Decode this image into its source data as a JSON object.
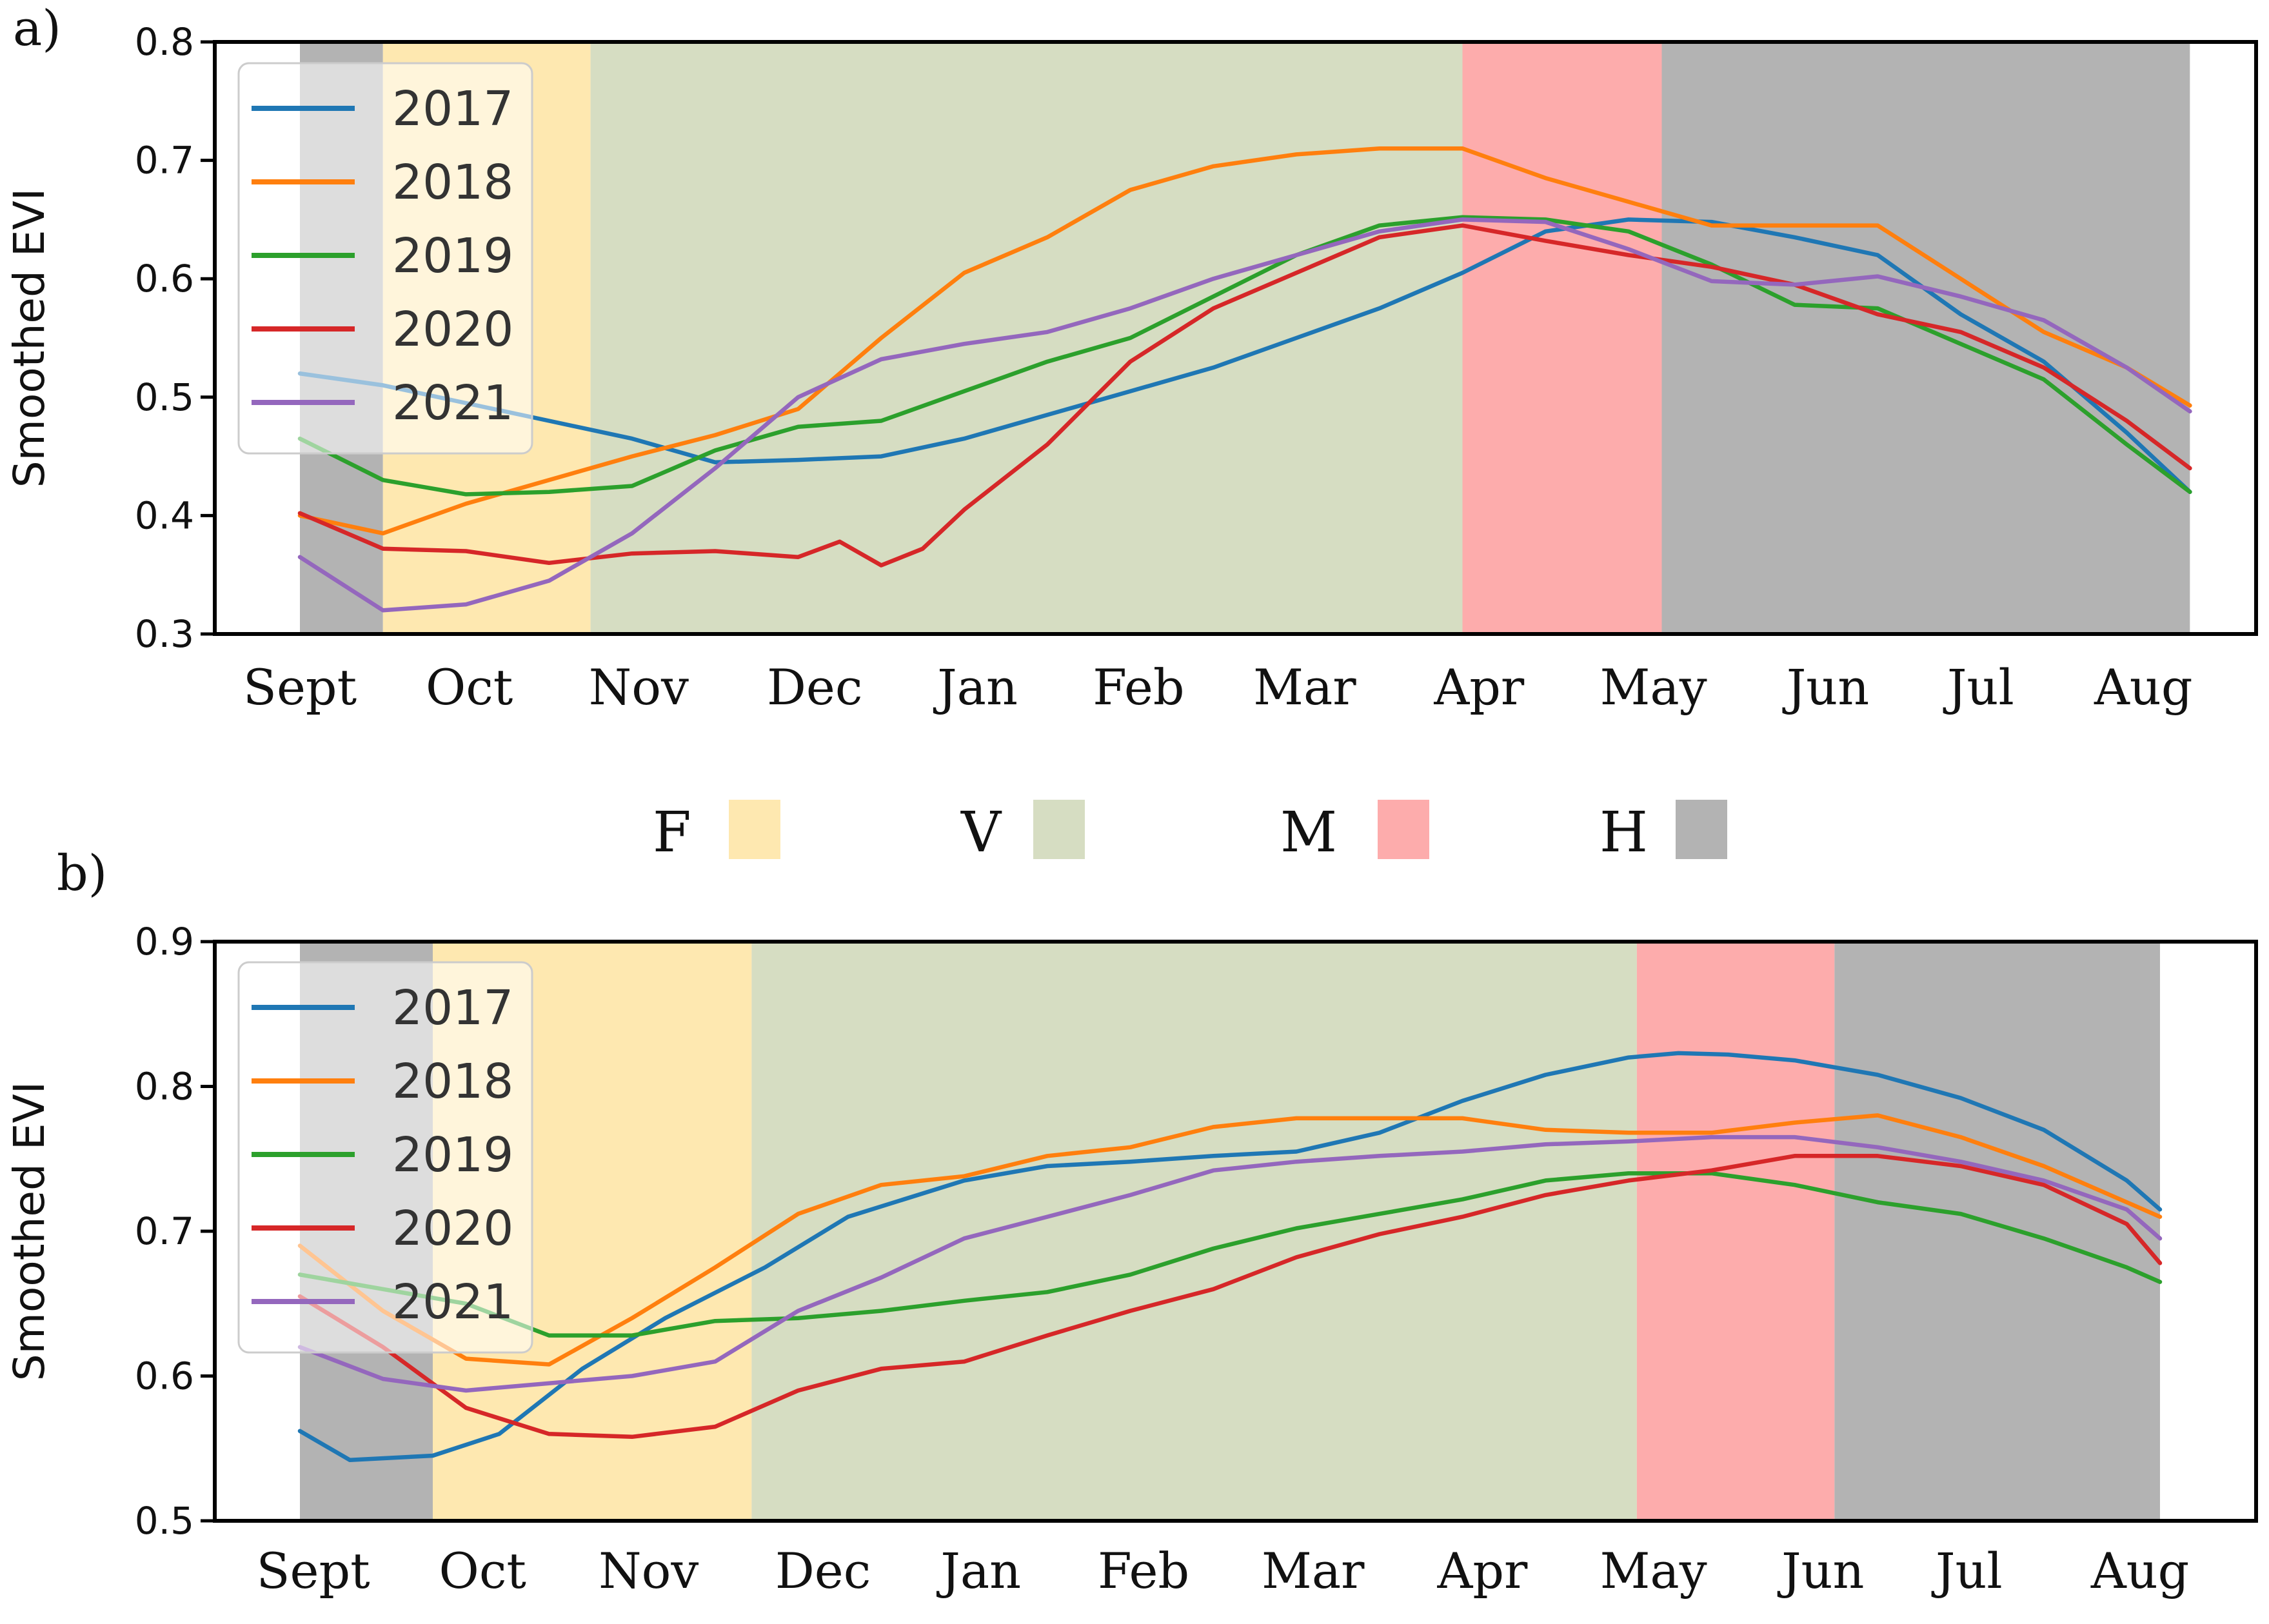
{
  "chart_data": [
    {
      "type": "line",
      "panel_label": "a)",
      "title": "",
      "xlabel": "",
      "ylabel": "Smoothed EVI",
      "ylim": [
        0.3,
        0.8
      ],
      "yticks": [
        "0.3",
        "0.4",
        "0.5",
        "0.6",
        "0.7",
        "0.8"
      ],
      "xlim": [
        0,
        12
      ],
      "month_labels": [
        "Sept",
        "Oct",
        "Nov",
        "Dec",
        "Jan",
        "Feb",
        "Mar",
        "Apr",
        "May",
        "Jun",
        "Jul",
        "Aug"
      ],
      "month_positions": [
        0,
        1.02,
        2.04,
        3.1,
        4.08,
        5.05,
        6.05,
        7.1,
        8.15,
        9.2,
        10.12,
        11.1
      ],
      "grid": false,
      "legend_position": "top-left",
      "phases": [
        {
          "key": "H",
          "start": 0,
          "end": 0.5
        },
        {
          "key": "F",
          "start": 0.5,
          "end": 1.75
        },
        {
          "key": "V",
          "start": 1.75,
          "end": 7.0
        },
        {
          "key": "M",
          "start": 7.0,
          "end": 8.2
        },
        {
          "key": "H",
          "start": 8.2,
          "end": 11.38
        }
      ],
      "series": [
        {
          "name": "2017",
          "color": "#1f77b4",
          "x": [
            0,
            0.5,
            1,
            1.5,
            2,
            2.5,
            3,
            3.5,
            4,
            4.5,
            5,
            5.5,
            6,
            6.5,
            7,
            7.5,
            8,
            8.5,
            9,
            9.5,
            10,
            10.5,
            11,
            11.38
          ],
          "values": [
            0.52,
            0.51,
            0.495,
            0.48,
            0.465,
            0.445,
            0.447,
            0.45,
            0.465,
            0.485,
            0.505,
            0.525,
            0.55,
            0.575,
            0.605,
            0.64,
            0.65,
            0.648,
            0.635,
            0.62,
            0.57,
            0.53,
            0.47,
            0.42
          ]
        },
        {
          "name": "2018",
          "color": "#ff7f0e",
          "x": [
            0,
            0.5,
            1,
            1.5,
            2,
            2.5,
            3,
            3.5,
            4,
            4.5,
            5,
            5.5,
            6,
            6.5,
            7,
            7.5,
            8,
            8.5,
            9,
            9.5,
            10,
            10.5,
            11,
            11.38
          ],
          "values": [
            0.4,
            0.385,
            0.41,
            0.43,
            0.45,
            0.468,
            0.49,
            0.55,
            0.605,
            0.635,
            0.675,
            0.695,
            0.705,
            0.71,
            0.71,
            0.685,
            0.665,
            0.645,
            0.645,
            0.645,
            0.6,
            0.555,
            0.525,
            0.493
          ]
        },
        {
          "name": "2019",
          "color": "#2ca02c",
          "x": [
            0,
            0.5,
            1,
            1.5,
            2,
            2.5,
            3,
            3.5,
            4,
            4.5,
            5,
            5.5,
            6,
            6.5,
            7,
            7.5,
            8,
            8.5,
            9,
            9.5,
            10,
            10.5,
            11,
            11.38
          ],
          "values": [
            0.465,
            0.43,
            0.418,
            0.42,
            0.425,
            0.455,
            0.475,
            0.48,
            0.505,
            0.53,
            0.55,
            0.585,
            0.62,
            0.645,
            0.652,
            0.65,
            0.64,
            0.612,
            0.578,
            0.575,
            0.545,
            0.515,
            0.46,
            0.42
          ]
        },
        {
          "name": "2020",
          "color": "#d62728",
          "x": [
            0,
            0.5,
            1,
            1.5,
            2,
            2.5,
            3,
            3.25,
            3.5,
            3.75,
            4,
            4.5,
            5,
            5.5,
            6,
            6.5,
            7,
            7.5,
            8,
            8.5,
            9,
            9.5,
            10,
            10.5,
            11,
            11.38
          ],
          "values": [
            0.402,
            0.372,
            0.37,
            0.36,
            0.368,
            0.37,
            0.365,
            0.378,
            0.358,
            0.372,
            0.405,
            0.46,
            0.53,
            0.575,
            0.605,
            0.635,
            0.645,
            0.632,
            0.62,
            0.61,
            0.595,
            0.57,
            0.555,
            0.525,
            0.48,
            0.44
          ]
        },
        {
          "name": "2021",
          "color": "#9467bd",
          "x": [
            0,
            0.5,
            1,
            1.5,
            2,
            2.5,
            3,
            3.5,
            4,
            4.5,
            5,
            5.5,
            6,
            6.5,
            7,
            7.5,
            8,
            8.5,
            9,
            9.5,
            10,
            10.5,
            11,
            11.38
          ],
          "values": [
            0.365,
            0.32,
            0.325,
            0.345,
            0.385,
            0.44,
            0.5,
            0.532,
            0.545,
            0.555,
            0.575,
            0.6,
            0.62,
            0.64,
            0.65,
            0.648,
            0.625,
            0.598,
            0.595,
            0.602,
            0.585,
            0.565,
            0.525,
            0.488
          ]
        }
      ]
    },
    {
      "type": "line",
      "panel_label": "b)",
      "title": "",
      "xlabel": "",
      "ylabel": "Smoothed EVI",
      "ylim": [
        0.5,
        0.9
      ],
      "yticks": [
        "0.5",
        "0.6",
        "0.7",
        "0.8",
        "0.9"
      ],
      "xlim": [
        0,
        12
      ],
      "month_labels": [
        "Sept",
        "Oct",
        "Nov",
        "Dec",
        "Jan",
        "Feb",
        "Mar",
        "Apr",
        "May",
        "Jun",
        "Jul",
        "Aug"
      ],
      "month_positions": [
        0.08,
        1.1,
        2.1,
        3.15,
        4.1,
        5.08,
        6.1,
        7.12,
        8.15,
        9.17,
        10.05,
        11.08
      ],
      "grid": false,
      "legend_position": "top-left",
      "phases": [
        {
          "key": "H",
          "start": 0,
          "end": 0.8
        },
        {
          "key": "F",
          "start": 0.8,
          "end": 2.72
        },
        {
          "key": "V",
          "start": 2.72,
          "end": 8.05
        },
        {
          "key": "M",
          "start": 8.05,
          "end": 9.24
        },
        {
          "key": "H",
          "start": 9.24,
          "end": 11.2
        }
      ],
      "series": [
        {
          "name": "2017",
          "color": "#1f77b4",
          "x": [
            0,
            0.3,
            0.8,
            1.2,
            1.7,
            2.2,
            2.8,
            3.3,
            4,
            4.5,
            5,
            5.5,
            6,
            6.5,
            7,
            7.5,
            8,
            8.3,
            8.6,
            9,
            9.5,
            10,
            10.5,
            11,
            11.2
          ],
          "values": [
            0.562,
            0.542,
            0.545,
            0.56,
            0.605,
            0.64,
            0.675,
            0.71,
            0.735,
            0.745,
            0.748,
            0.752,
            0.755,
            0.768,
            0.79,
            0.808,
            0.82,
            0.823,
            0.822,
            0.818,
            0.808,
            0.792,
            0.77,
            0.735,
            0.715
          ]
        },
        {
          "name": "2018",
          "color": "#ff7f0e",
          "x": [
            0,
            0.5,
            1,
            1.5,
            2,
            2.5,
            3,
            3.5,
            4,
            4.5,
            5,
            5.5,
            6,
            6.5,
            7,
            7.5,
            8,
            8.5,
            9,
            9.5,
            10,
            10.5,
            11,
            11.2
          ],
          "values": [
            0.69,
            0.645,
            0.612,
            0.608,
            0.64,
            0.675,
            0.712,
            0.732,
            0.738,
            0.752,
            0.758,
            0.772,
            0.778,
            0.778,
            0.778,
            0.77,
            0.768,
            0.768,
            0.775,
            0.78,
            0.765,
            0.745,
            0.72,
            0.71
          ]
        },
        {
          "name": "2019",
          "color": "#2ca02c",
          "x": [
            0,
            0.5,
            1,
            1.5,
            2,
            2.5,
            3,
            3.5,
            4,
            4.5,
            5,
            5.5,
            6,
            6.5,
            7,
            7.5,
            8,
            8.5,
            9,
            9.5,
            10,
            10.5,
            11,
            11.2
          ],
          "values": [
            0.67,
            0.66,
            0.65,
            0.628,
            0.628,
            0.638,
            0.64,
            0.645,
            0.652,
            0.658,
            0.67,
            0.688,
            0.702,
            0.712,
            0.722,
            0.735,
            0.74,
            0.74,
            0.732,
            0.72,
            0.712,
            0.695,
            0.675,
            0.665
          ]
        },
        {
          "name": "2020",
          "color": "#d62728",
          "x": [
            0,
            0.5,
            1,
            1.5,
            2,
            2.5,
            3,
            3.5,
            4,
            4.5,
            5,
            5.5,
            6,
            6.5,
            7,
            7.5,
            8,
            8.5,
            9,
            9.5,
            10,
            10.5,
            11,
            11.2
          ],
          "values": [
            0.655,
            0.62,
            0.578,
            0.56,
            0.558,
            0.565,
            0.59,
            0.605,
            0.61,
            0.628,
            0.645,
            0.66,
            0.682,
            0.698,
            0.71,
            0.725,
            0.735,
            0.742,
            0.752,
            0.752,
            0.745,
            0.732,
            0.705,
            0.678
          ]
        },
        {
          "name": "2021",
          "color": "#9467bd",
          "x": [
            0,
            0.5,
            1,
            1.5,
            2,
            2.5,
            3,
            3.5,
            4,
            4.5,
            5,
            5.5,
            6,
            6.5,
            7,
            7.5,
            8,
            8.5,
            9,
            9.5,
            10,
            10.5,
            11,
            11.2
          ],
          "values": [
            0.62,
            0.598,
            0.59,
            0.595,
            0.6,
            0.61,
            0.645,
            0.668,
            0.695,
            0.71,
            0.725,
            0.742,
            0.748,
            0.752,
            0.755,
            0.76,
            0.762,
            0.765,
            0.765,
            0.758,
            0.748,
            0.735,
            0.715,
            0.695
          ]
        }
      ]
    }
  ],
  "phase_legend": [
    {
      "key": "F",
      "label": "F",
      "color": "#fee8b0"
    },
    {
      "key": "V",
      "label": "V",
      "color": "#d6ddc2"
    },
    {
      "key": "M",
      "label": "M",
      "color": "#fdacac"
    },
    {
      "key": "H",
      "label": "H",
      "color": "#b3b3b3"
    }
  ]
}
